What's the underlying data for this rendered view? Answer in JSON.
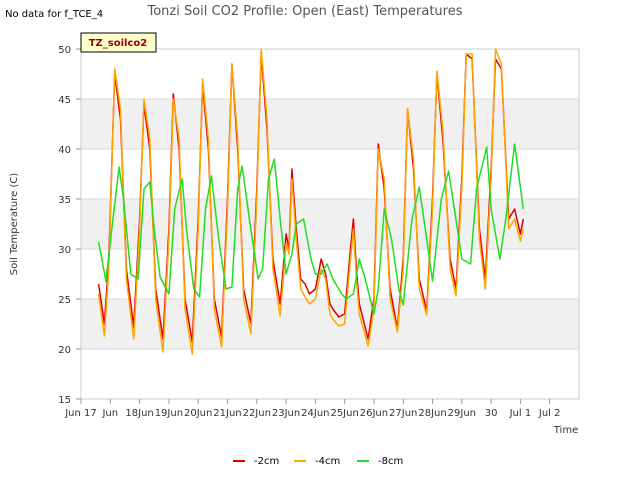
{
  "corner_note": "No data for f_TCE_4",
  "badge_label": "TZ_soilco2",
  "colors": {
    "-2cm": "#dd0000",
    "-4cm": "#ffa500",
    "-8cm": "#22dd22",
    "band": "#f0f0f0",
    "grid": "#dddddd"
  },
  "chart_data": {
    "type": "line",
    "title": "Tonzi Soil CO2 Profile: Open (East) Temperatures",
    "xlabel": "Time",
    "ylabel": "Soil Temperature (C)",
    "ylim": [
      15,
      50
    ],
    "xlim": [
      16,
      33
    ],
    "x_ticks": [
      {
        "pos": 16,
        "label": "Jun 17"
      },
      {
        "pos": 17,
        "label": "Jun"
      },
      {
        "pos": 18,
        "label": "18Jun"
      },
      {
        "pos": 19,
        "label": "19Jun"
      },
      {
        "pos": 20,
        "label": "20Jun"
      },
      {
        "pos": 21,
        "label": "21Jun"
      },
      {
        "pos": 22,
        "label": "22Jun"
      },
      {
        "pos": 23,
        "label": "23Jun"
      },
      {
        "pos": 24,
        "label": "24Jun"
      },
      {
        "pos": 25,
        "label": "25Jun"
      },
      {
        "pos": 26,
        "label": "26Jun"
      },
      {
        "pos": 27,
        "label": "27Jun"
      },
      {
        "pos": 28,
        "label": "28Jun"
      },
      {
        "pos": 29,
        "label": "29Jun"
      },
      {
        "pos": 30,
        "label": "30"
      },
      {
        "pos": 31,
        "label": "Jul 1"
      },
      {
        "pos": 32,
        "label": "Jul 2"
      }
    ],
    "y_ticks": [
      15,
      20,
      25,
      30,
      35,
      40,
      45,
      50
    ],
    "grid": true,
    "legend_position": "bottom-center",
    "series": [
      {
        "name": "-2cm",
        "x": [
          16.6,
          16.8,
          16.95,
          17.15,
          17.35,
          17.55,
          17.8,
          18.0,
          18.15,
          18.35,
          18.55,
          18.8,
          19.0,
          19.15,
          19.35,
          19.55,
          19.8,
          20.0,
          20.15,
          20.35,
          20.55,
          20.8,
          21.0,
          21.15,
          21.35,
          21.55,
          21.8,
          22.0,
          22.15,
          22.35,
          22.55,
          22.8,
          23.0,
          23.1,
          23.2,
          23.35,
          23.5,
          23.65,
          23.8,
          24.0,
          24.2,
          24.35,
          24.5,
          24.6,
          24.8,
          25.0,
          25.2,
          25.3,
          25.4,
          25.5,
          25.8,
          26.0,
          26.15,
          26.35,
          26.55,
          26.8,
          27.0,
          27.15,
          27.35,
          27.55,
          27.8,
          28.0,
          28.15,
          28.35,
          28.6,
          28.8,
          29.0,
          29.15,
          29.35,
          29.6,
          29.8,
          30.0,
          30.15,
          30.35,
          30.6,
          30.8,
          31.0,
          31.1
        ],
        "y": [
          26.5,
          22.5,
          29,
          47.5,
          43,
          28,
          22.2,
          33,
          44.5,
          40,
          26,
          21,
          32,
          45.5,
          40,
          25,
          20.7,
          33,
          46.5,
          40,
          25,
          21.2,
          35,
          48.5,
          40,
          26,
          22.5,
          36,
          49.5,
          42,
          29,
          24.5,
          31.5,
          30,
          38,
          32,
          27,
          26.5,
          25.5,
          26,
          29,
          27.5,
          24.5,
          24,
          23.2,
          23.5,
          30,
          33,
          28,
          24.5,
          21,
          25,
          40.5,
          36,
          26,
          22,
          29,
          44,
          38,
          27,
          23.8,
          35,
          47.5,
          41,
          29,
          26,
          37,
          49.5,
          49,
          32,
          27,
          38,
          49,
          48,
          33,
          34,
          31.5,
          33
        ]
      },
      {
        "name": "-4cm",
        "x": [
          16.6,
          16.8,
          16.95,
          17.15,
          17.35,
          17.55,
          17.8,
          18.0,
          18.15,
          18.35,
          18.55,
          18.8,
          19.0,
          19.15,
          19.35,
          19.55,
          19.8,
          20.0,
          20.15,
          20.35,
          20.55,
          20.8,
          21.0,
          21.15,
          21.35,
          21.55,
          21.8,
          22.0,
          22.15,
          22.35,
          22.55,
          22.8,
          23.0,
          23.1,
          23.2,
          23.35,
          23.5,
          23.65,
          23.8,
          24.0,
          24.2,
          24.35,
          24.5,
          24.6,
          24.8,
          25.0,
          25.2,
          25.3,
          25.4,
          25.5,
          25.8,
          26.0,
          26.15,
          26.35,
          26.55,
          26.8,
          27.0,
          27.15,
          27.35,
          27.55,
          27.8,
          28.0,
          28.15,
          28.35,
          28.6,
          28.8,
          29.0,
          29.15,
          29.35,
          29.6,
          29.8,
          30.0,
          30.15,
          30.35,
          30.6,
          30.8,
          31.0,
          31.1
        ],
        "y": [
          25.5,
          21.3,
          28,
          48,
          44,
          27,
          21,
          32,
          45,
          41,
          25,
          19.7,
          31,
          45,
          41,
          24,
          19.5,
          32,
          47,
          41,
          24,
          20.2,
          34,
          48.5,
          41,
          25,
          21.5,
          35,
          50,
          43,
          28,
          23.3,
          30.5,
          29.5,
          37,
          31,
          26,
          25.2,
          24.5,
          25,
          28,
          27,
          23.5,
          23,
          22.3,
          22.5,
          29,
          32,
          27,
          23.5,
          20.3,
          24,
          40,
          37,
          25,
          21.7,
          28,
          44,
          39,
          26,
          23.4,
          34,
          47.8,
          42,
          28,
          25.3,
          36,
          49.5,
          49.5,
          31,
          26,
          37,
          50,
          48.5,
          32,
          33,
          30.8,
          32
        ]
      },
      {
        "name": "-8cm",
        "x": [
          16.6,
          16.85,
          17.05,
          17.3,
          17.45,
          17.7,
          17.95,
          18.15,
          18.35,
          18.5,
          18.7,
          19.0,
          19.2,
          19.45,
          19.6,
          19.85,
          20.05,
          20.25,
          20.45,
          20.7,
          20.95,
          21.15,
          21.35,
          21.5,
          21.75,
          22.05,
          22.2,
          22.4,
          22.6,
          22.8,
          23.0,
          23.2,
          23.35,
          23.6,
          23.85,
          24.0,
          24.2,
          24.4,
          24.6,
          24.9,
          25.05,
          25.3,
          25.5,
          25.7,
          26.0,
          26.15,
          26.35,
          26.6,
          26.85,
          27.0,
          27.3,
          27.55,
          27.85,
          28.0,
          28.3,
          28.55,
          28.85,
          29.0,
          29.3,
          29.5,
          29.85,
          30.0,
          30.3,
          30.5,
          30.8,
          31.1
        ],
        "y": [
          30.7,
          26.8,
          32,
          38.2,
          35,
          27.5,
          27,
          36,
          36.7,
          32,
          27.2,
          25.5,
          34,
          37,
          32,
          26,
          25.2,
          34,
          37.3,
          31,
          26,
          26.2,
          36,
          38.3,
          33,
          27,
          28,
          37,
          39,
          33,
          27.5,
          29.5,
          32.5,
          33,
          29,
          27.5,
          27.5,
          28.5,
          27,
          25.5,
          25,
          25.5,
          29,
          27,
          23.5,
          26,
          34,
          31,
          26,
          24.4,
          33,
          36.2,
          30,
          26.8,
          35,
          37.8,
          32,
          29,
          28.5,
          36,
          40.2,
          34,
          29,
          33,
          40.5,
          34
        ]
      }
    ]
  }
}
